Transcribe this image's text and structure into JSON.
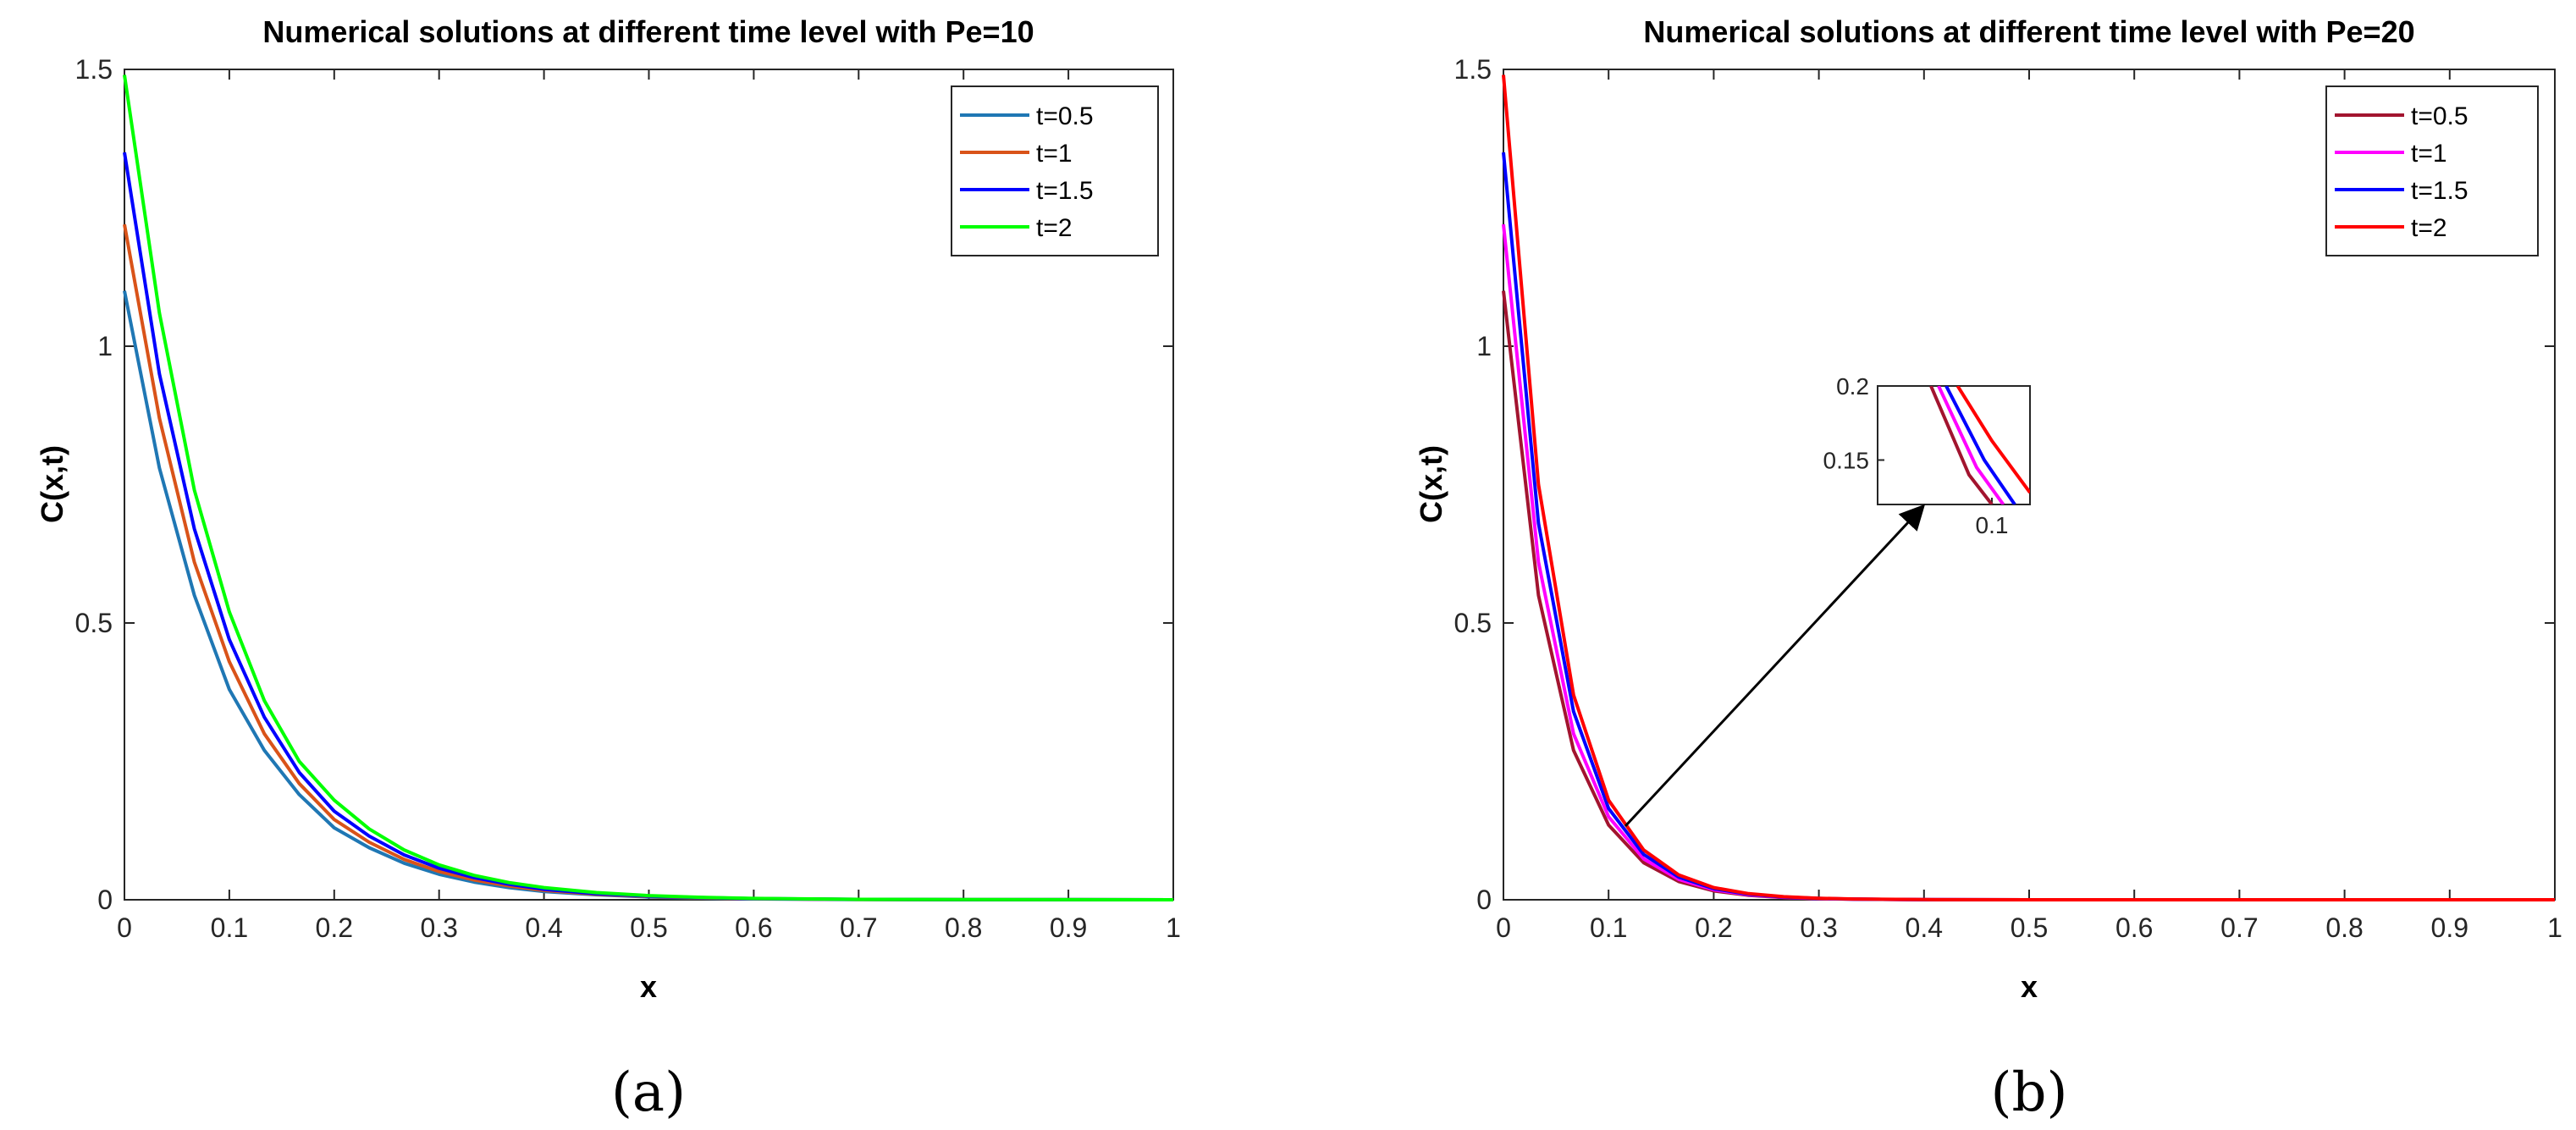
{
  "chart_data": [
    {
      "type": "line",
      "title": "Numerical solutions at different time level with Pe=10",
      "xlabel": "x",
      "ylabel": "C(x,t)",
      "xlim": [
        0,
        1
      ],
      "ylim": [
        0,
        1.5
      ],
      "xticks": [
        0,
        0.1,
        0.2,
        0.3,
        0.4,
        0.5,
        0.6,
        0.7,
        0.8,
        0.9,
        1
      ],
      "xtick_labels": [
        "0",
        "0.1",
        "0.2",
        "0.3",
        "0.4",
        "0.5",
        "0.6",
        "0.7",
        "0.8",
        "0.9",
        "1"
      ],
      "yticks": [
        0,
        0.5,
        1,
        1.5
      ],
      "ytick_labels": [
        "0",
        "0.5",
        "1",
        "1.5"
      ],
      "legend_position": "top-right",
      "caption": "(a)",
      "x": [
        0,
        0.0333,
        0.0667,
        0.1,
        0.1333,
        0.1667,
        0.2,
        0.2333,
        0.2667,
        0.3,
        0.3333,
        0.3667,
        0.4,
        0.45,
        0.5,
        0.55,
        0.6,
        0.7,
        0.8,
        0.9,
        1
      ],
      "series": [
        {
          "name": "t=0.5",
          "color": "#1f77b4",
          "values": [
            1.1,
            0.78,
            0.55,
            0.38,
            0.27,
            0.19,
            0.13,
            0.094,
            0.066,
            0.046,
            0.032,
            0.022,
            0.015,
            0.009,
            0.005,
            0.003,
            0.0015,
            0.0005,
            0.0002,
            0.0001,
            0
          ]
        },
        {
          "name": "t=1",
          "color": "#d95319",
          "values": [
            1.22,
            0.87,
            0.61,
            0.43,
            0.3,
            0.21,
            0.145,
            0.104,
            0.073,
            0.051,
            0.036,
            0.025,
            0.017,
            0.01,
            0.006,
            0.0035,
            0.002,
            0.0006,
            0.0002,
            0.0001,
            0
          ]
        },
        {
          "name": "t=1.5",
          "color": "#0000ff",
          "values": [
            1.35,
            0.95,
            0.67,
            0.47,
            0.33,
            0.23,
            0.16,
            0.115,
            0.081,
            0.057,
            0.04,
            0.028,
            0.019,
            0.011,
            0.0065,
            0.004,
            0.0022,
            0.0007,
            0.0002,
            0.0001,
            0
          ]
        },
        {
          "name": "t=2",
          "color": "#00ff00",
          "values": [
            1.49,
            1.06,
            0.74,
            0.52,
            0.36,
            0.25,
            0.18,
            0.128,
            0.09,
            0.063,
            0.044,
            0.031,
            0.022,
            0.013,
            0.0075,
            0.0045,
            0.0025,
            0.0008,
            0.0003,
            0.0001,
            0
          ]
        }
      ]
    },
    {
      "type": "line",
      "title": "Numerical solutions at different time level with Pe=20",
      "xlabel": "x",
      "ylabel": "C(x,t)",
      "xlim": [
        0,
        1
      ],
      "ylim": [
        0,
        1.5
      ],
      "xticks": [
        0,
        0.1,
        0.2,
        0.3,
        0.4,
        0.5,
        0.6,
        0.7,
        0.8,
        0.9,
        1
      ],
      "xtick_labels": [
        "0",
        "0.1",
        "0.2",
        "0.3",
        "0.4",
        "0.5",
        "0.6",
        "0.7",
        "0.8",
        "0.9",
        "1"
      ],
      "yticks": [
        0,
        0.5,
        1,
        1.5
      ],
      "ytick_labels": [
        "0",
        "0.5",
        "1",
        "1.5"
      ],
      "legend_position": "top-right",
      "caption": "(b)",
      "x": [
        0,
        0.0333,
        0.0667,
        0.1,
        0.1333,
        0.1667,
        0.2,
        0.2333,
        0.2667,
        0.3,
        0.3333,
        0.4,
        0.5,
        0.6,
        0.7,
        0.8,
        0.9,
        1
      ],
      "series": [
        {
          "name": "t=0.5",
          "color": "#a2142f",
          "values": [
            1.1,
            0.55,
            0.27,
            0.135,
            0.067,
            0.033,
            0.016,
            0.008,
            0.004,
            0.002,
            0.001,
            0.0002,
            0,
            0,
            0,
            0,
            0,
            0
          ]
        },
        {
          "name": "t=1",
          "color": "#ff00ff",
          "values": [
            1.22,
            0.61,
            0.3,
            0.15,
            0.074,
            0.037,
            0.018,
            0.009,
            0.0045,
            0.0022,
            0.0011,
            0.0002,
            0,
            0,
            0,
            0,
            0,
            0
          ]
        },
        {
          "name": "t=1.5",
          "color": "#0000ff",
          "values": [
            1.35,
            0.68,
            0.34,
            0.165,
            0.082,
            0.041,
            0.02,
            0.01,
            0.005,
            0.0025,
            0.0012,
            0.0002,
            0,
            0,
            0,
            0,
            0,
            0
          ]
        },
        {
          "name": "t=2",
          "color": "#ff0000",
          "values": [
            1.49,
            0.75,
            0.37,
            0.18,
            0.09,
            0.045,
            0.022,
            0.011,
            0.0055,
            0.0027,
            0.0013,
            0.0003,
            0,
            0,
            0,
            0,
            0,
            0
          ]
        }
      ],
      "inset": {
        "xlim": [
          0.085,
          0.105
        ],
        "ylim": [
          0.12,
          0.2
        ],
        "xticks": [
          0.1
        ],
        "xtick_labels": [
          "0.1"
        ],
        "yticks": [
          0.15,
          0.2
        ],
        "ytick_labels": [
          "0.15",
          "0.2"
        ],
        "series": [
          {
            "name": "t=0.5",
            "color": "#a2142f",
            "x": [
              0.092,
              0.097,
              0.1
            ],
            "values": [
              0.2,
              0.14,
              0.12
            ]
          },
          {
            "name": "t=1",
            "color": "#ff00ff",
            "x": [
              0.093,
              0.098,
              0.1015
            ],
            "values": [
              0.2,
              0.145,
              0.12
            ]
          },
          {
            "name": "t=1.5",
            "color": "#0000ff",
            "x": [
              0.094,
              0.099,
              0.103
            ],
            "values": [
              0.2,
              0.15,
              0.12
            ]
          },
          {
            "name": "t=2",
            "color": "#ff0000",
            "x": [
              0.0955,
              0.1,
              0.105
            ],
            "values": [
              0.2,
              0.163,
              0.128
            ]
          }
        ]
      }
    }
  ]
}
